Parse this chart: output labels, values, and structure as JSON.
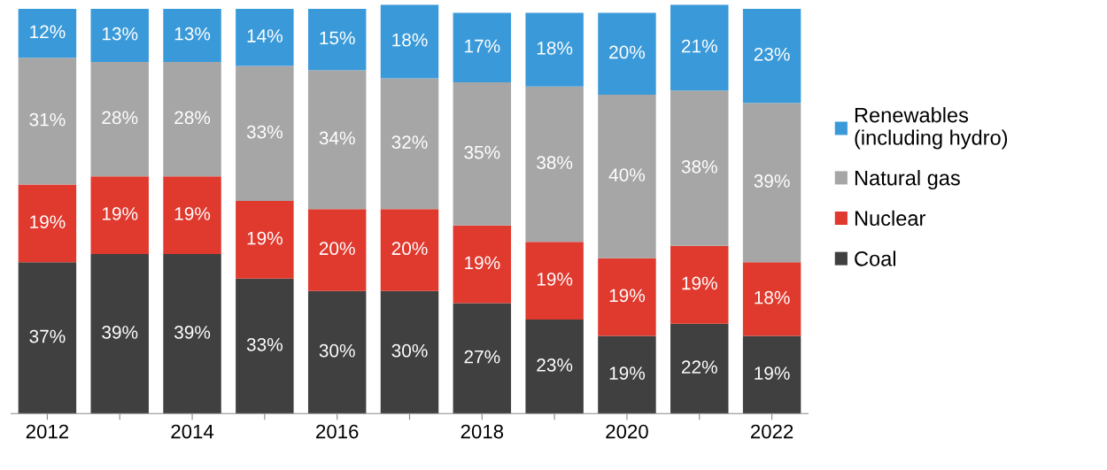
{
  "chart_data": {
    "type": "bar",
    "stacked": true,
    "legend": "right",
    "grid": false,
    "categories": [
      "2012",
      null,
      "2014",
      null,
      "2016",
      null,
      "2018",
      null,
      "2020",
      null,
      "2022"
    ],
    "series": [
      {
        "name": "Coal",
        "color": "#404040",
        "values": [
          37,
          39,
          39,
          33,
          30,
          30,
          27,
          23,
          19,
          22,
          19
        ],
        "value_labels": [
          "37%",
          "39%",
          "39%",
          "33%",
          "30%",
          "30%",
          "27%",
          "23%",
          "19%",
          "22%",
          "19%"
        ]
      },
      {
        "name": "Nuclear",
        "color": "#e0392e",
        "values": [
          19,
          19,
          19,
          19,
          20,
          20,
          19,
          19,
          19,
          19,
          18
        ],
        "value_labels": [
          "19%",
          "19%",
          "19%",
          "19%",
          "20%",
          "20%",
          "19%",
          "19%",
          "19%",
          "19%",
          "18%"
        ]
      },
      {
        "name": "Natural gas",
        "color": "#a6a6a6",
        "values": [
          31,
          28,
          28,
          33,
          34,
          32,
          35,
          38,
          40,
          38,
          39
        ],
        "value_labels": [
          "31%",
          "28%",
          "28%",
          "33%",
          "34%",
          "32%",
          "35%",
          "38%",
          "40%",
          "38%",
          "39%"
        ]
      },
      {
        "name": "Renewables\n(including hydro)",
        "color": "#3a9ad9",
        "values": [
          12,
          13,
          13,
          14,
          15,
          18,
          17,
          18,
          20,
          21,
          23
        ],
        "value_labels": [
          "12%",
          "13%",
          "13%",
          "14%",
          "15%",
          "18%",
          "17%",
          "18%",
          "20%",
          "21%",
          "23%"
        ]
      }
    ]
  }
}
